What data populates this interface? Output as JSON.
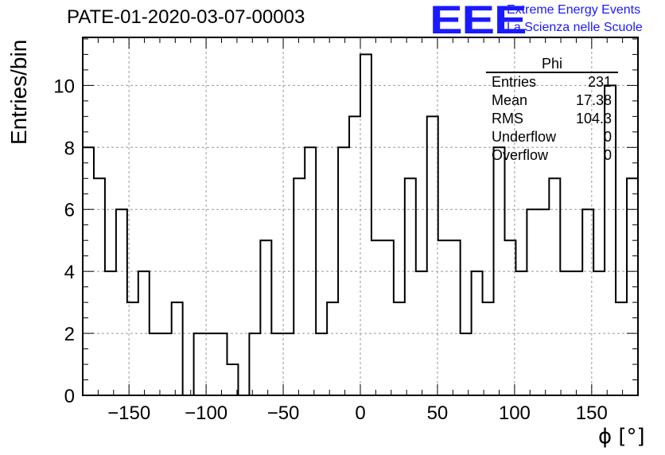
{
  "title": "PATE-01-2020-03-07-00003",
  "logo": {
    "text": "EEE",
    "line1": "Extreme Energy Events",
    "line2": "La Scienza nelle Scuole",
    "color": "#1a1aff"
  },
  "stats": {
    "title": "Phi",
    "rows": [
      {
        "label": "Entries",
        "value": "231"
      },
      {
        "label": "Mean",
        "value": "17.38"
      },
      {
        "label": "RMS",
        "value": "104.3"
      },
      {
        "label": "Underflow",
        "value": "0"
      },
      {
        "label": "Overflow",
        "value": "0"
      }
    ]
  },
  "chart_data": {
    "type": "bar",
    "style": "step-histogram",
    "xlabel": "ϕ [°]",
    "ylabel": "Entries/bin",
    "xlim": [
      -180,
      180
    ],
    "ylim": [
      0,
      11.55
    ],
    "bin_width": 7.2,
    "x_ticks": [
      -150,
      -100,
      -50,
      0,
      50,
      100,
      150
    ],
    "y_ticks": [
      0,
      2,
      4,
      6,
      8,
      10
    ],
    "grid": true,
    "values": [
      8,
      7,
      4,
      6,
      3,
      4,
      2,
      2,
      3,
      0,
      2,
      2,
      2,
      1,
      0,
      2,
      5,
      2,
      2,
      7,
      8,
      2,
      3,
      8,
      9,
      11,
      5,
      5,
      3,
      7,
      4,
      9,
      5,
      5,
      2,
      4,
      3,
      8,
      5,
      4,
      6,
      6,
      7,
      4,
      4,
      6,
      4,
      10,
      3,
      7
    ]
  }
}
